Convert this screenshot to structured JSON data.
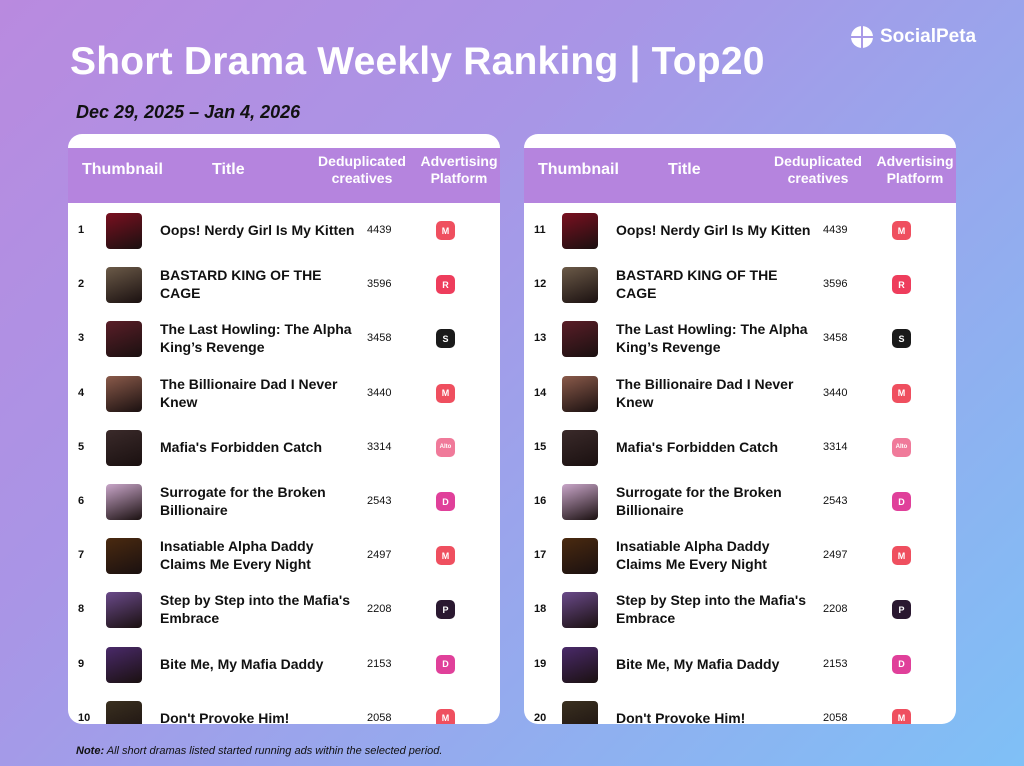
{
  "header": {
    "title": "Short Drama Weekly Ranking | Top20",
    "date_range": "Dec 29, 2025 – Jan 4, 2026",
    "brand": "SocialPeta"
  },
  "columns": {
    "thumbnail": "Thumbnail",
    "title": "Title",
    "dedup": "Deduplicated creatives",
    "platform": "Advertising Platform"
  },
  "rows": [
    {
      "rank": "1",
      "title": "Oops! Nerdy Girl Is My Kitten",
      "count": "4439",
      "platform": "platform-m-icon",
      "color": "#ef4f5f",
      "thumb": "#7a1020"
    },
    {
      "rank": "2",
      "title": "BASTARD KING OF THE CAGE",
      "count": "3596",
      "platform": "platform-r-icon",
      "color": "#ee3d5c",
      "thumb": "#6b5a48"
    },
    {
      "rank": "3",
      "title": "The Last Howling: The Alpha King’s Revenge",
      "count": "3458",
      "platform": "platform-s-icon",
      "color": "#1a1a1a",
      "thumb": "#5a1e28"
    },
    {
      "rank": "4",
      "title": "The Billionaire Dad I Never Knew",
      "count": "3440",
      "platform": "platform-m-icon",
      "color": "#ef4f5f",
      "thumb": "#8a5a4a"
    },
    {
      "rank": "5",
      "title": "Mafia's Forbidden Catch",
      "count": "3314",
      "platform": "platform-alto-icon",
      "color": "#f07a9a",
      "thumb": "#3a2a2a"
    },
    {
      "rank": "6",
      "title": "Surrogate for the Broken Billionaire",
      "count": "2543",
      "platform": "platform-d-icon",
      "color": "#e0409a",
      "thumb": "#c9a6c9"
    },
    {
      "rank": "7",
      "title": "Insatiable Alpha Daddy Claims Me Every Night",
      "count": "2497",
      "platform": "platform-m-icon",
      "color": "#ef4f5f",
      "thumb": "#4a2a10"
    },
    {
      "rank": "8",
      "title": "Step by Step into the Mafia's Embrace",
      "count": "2208",
      "platform": "platform-p-icon",
      "color": "#2a1830",
      "thumb": "#6a4a8a"
    },
    {
      "rank": "9",
      "title": "Bite Me, My Mafia Daddy",
      "count": "2153",
      "platform": "platform-d-icon",
      "color": "#e0409a",
      "thumb": "#4a2a6a"
    },
    {
      "rank": "10",
      "title": "Don't Provoke Him!",
      "count": "2058",
      "platform": "platform-m-icon",
      "color": "#ef4f5f",
      "thumb": "#3a3020"
    },
    {
      "rank": "11",
      "title": "Oops! Nerdy Girl Is My Kitten",
      "count": "4439",
      "platform": "platform-m-icon",
      "color": "#ef4f5f",
      "thumb": "#7a1020"
    },
    {
      "rank": "12",
      "title": "BASTARD KING OF THE CAGE",
      "count": "3596",
      "platform": "platform-r-icon",
      "color": "#ee3d5c",
      "thumb": "#6b5a48"
    },
    {
      "rank": "13",
      "title": "The Last Howling: The Alpha King’s Revenge",
      "count": "3458",
      "platform": "platform-s-icon",
      "color": "#1a1a1a",
      "thumb": "#5a1e28"
    },
    {
      "rank": "14",
      "title": "The Billionaire Dad I Never Knew",
      "count": "3440",
      "platform": "platform-m-icon",
      "color": "#ef4f5f",
      "thumb": "#8a5a4a"
    },
    {
      "rank": "15",
      "title": "Mafia's Forbidden Catch",
      "count": "3314",
      "platform": "platform-alto-icon",
      "color": "#f07a9a",
      "thumb": "#3a2a2a"
    },
    {
      "rank": "16",
      "title": "Surrogate for the Broken Billionaire",
      "count": "2543",
      "platform": "platform-d-icon",
      "color": "#e0409a",
      "thumb": "#c9a6c9"
    },
    {
      "rank": "17",
      "title": "Insatiable Alpha Daddy Claims Me Every Night",
      "count": "2497",
      "platform": "platform-m-icon",
      "color": "#ef4f5f",
      "thumb": "#4a2a10"
    },
    {
      "rank": "18",
      "title": "Step by Step into the Mafia's Embrace",
      "count": "2208",
      "platform": "platform-p-icon",
      "color": "#2a1830",
      "thumb": "#6a4a8a"
    },
    {
      "rank": "19",
      "title": "Bite Me, My Mafia Daddy",
      "count": "2153",
      "platform": "platform-d-icon",
      "color": "#e0409a",
      "thumb": "#4a2a6a"
    },
    {
      "rank": "20",
      "title": "Don't Provoke Him!",
      "count": "2058",
      "platform": "platform-m-icon",
      "color": "#ef4f5f",
      "thumb": "#3a3020"
    }
  ],
  "note": {
    "label": "Note:",
    "text": " All short dramas listed started running ads within the selected period."
  }
}
